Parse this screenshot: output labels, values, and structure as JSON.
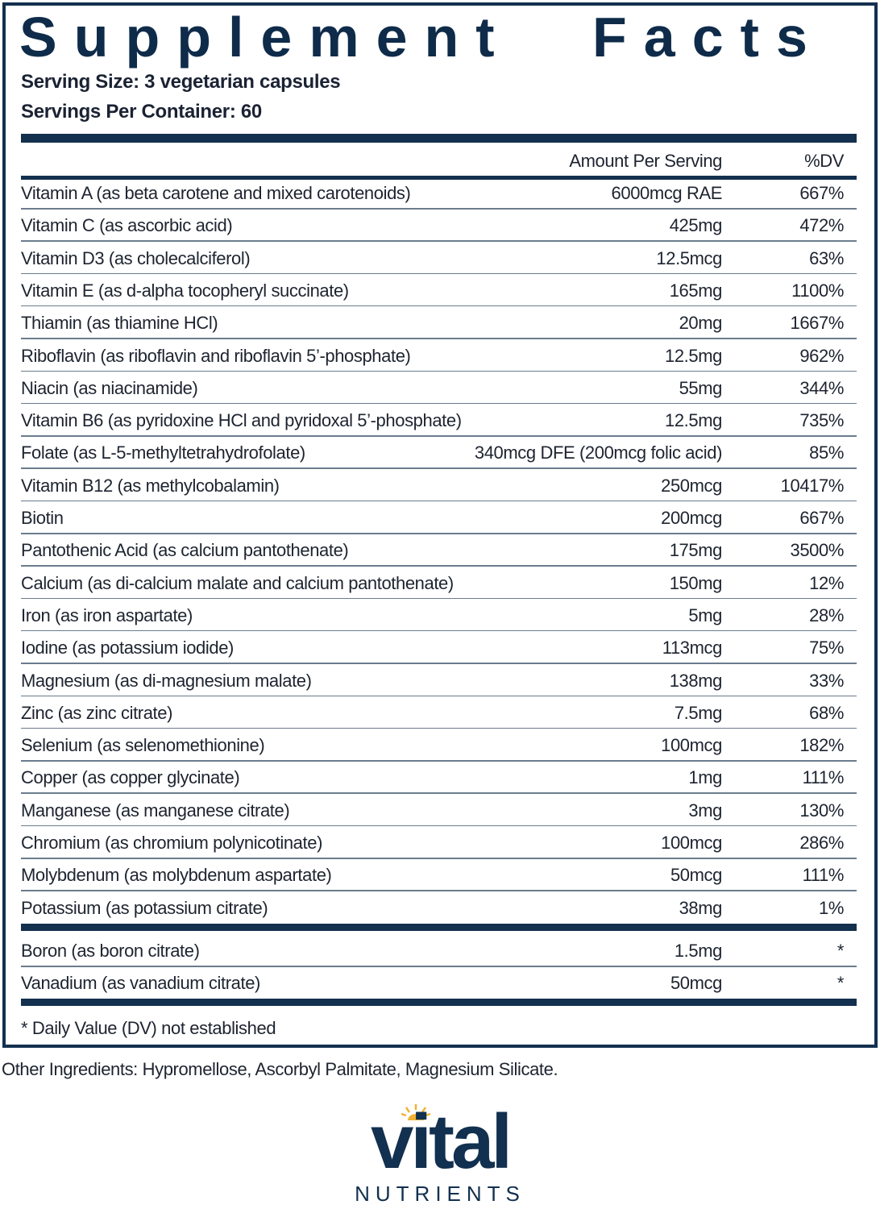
{
  "label": {
    "title": "Supplement Facts",
    "serving_size": "Serving Size: 3 vegetarian capsules",
    "servings_per_container": "Servings Per Container: 60",
    "header": {
      "amount": "Amount Per Serving",
      "dv": "%DV"
    },
    "rows": [
      [
        "Vitamin A (as beta carotene and mixed carotenoids)",
        "6000mcg RAE",
        "667%"
      ],
      [
        "Vitamin C (as ascorbic acid)",
        "425mg",
        "472%"
      ],
      [
        "Vitamin D3 (as cholecalciferol)",
        "12.5mcg",
        "63%"
      ],
      [
        "Vitamin E (as d-alpha tocopheryl succinate)",
        "165mg",
        "1100%"
      ],
      [
        "Thiamin (as thiamine HCl)",
        "20mg",
        "1667%"
      ],
      [
        "Riboflavin (as riboflavin and riboflavin 5’-phosphate)",
        "12.5mg",
        "962%"
      ],
      [
        "Niacin (as niacinamide)",
        "55mg",
        "344%"
      ],
      [
        "Vitamin B6 (as pyridoxine HCl and pyridoxal 5’-phosphate)",
        "12.5mg",
        "735%"
      ],
      [
        "Folate (as L-5-methyltetrahydrofolate)",
        "340mcg DFE (200mcg folic acid)",
        "85%"
      ],
      [
        "Vitamin B12 (as methylcobalamin)",
        "250mcg",
        "10417%"
      ],
      [
        "Biotin",
        "200mcg",
        "667%"
      ],
      [
        "Pantothenic Acid (as calcium pantothenate)",
        "175mg",
        "3500%"
      ],
      [
        "Calcium (as di-calcium malate and calcium pantothenate)",
        "150mg",
        "12%"
      ],
      [
        "Iron (as iron aspartate)",
        "5mg",
        "28%"
      ],
      [
        "Iodine (as potassium iodide)",
        "113mcg",
        "75%"
      ],
      [
        "Magnesium (as di-magnesium malate)",
        "138mg",
        "33%"
      ],
      [
        "Zinc (as zinc citrate)",
        "7.5mg",
        "68%"
      ],
      [
        "Selenium (as selenomethionine)",
        "100mcg",
        "182%"
      ],
      [
        "Copper (as copper glycinate)",
        "1mg",
        "111%"
      ],
      [
        "Manganese (as manganese citrate)",
        "3mg",
        "130%"
      ],
      [
        "Chromium (as chromium polynicotinate)",
        "100mcg",
        "286%"
      ],
      [
        "Molybdenum (as molybdenum aspartate)",
        "50mcg",
        "111%"
      ],
      [
        "Potassium (as potassium citrate)",
        "38mg",
        "1%"
      ]
    ],
    "other_rows": [
      [
        "Boron (as boron citrate)",
        "1.5mg",
        "*"
      ],
      [
        "Vanadium (as vanadium citrate)",
        "50mcg",
        "*"
      ]
    ],
    "footnote": "* Daily Value (DV) not established"
  },
  "other_ingredients": "Other Ingredients: Hypromellose, Ascorbyl Palmitate, Magnesium Silicate.",
  "logo": {
    "name": "vital",
    "subtitle": "NUTRIENTS"
  }
}
